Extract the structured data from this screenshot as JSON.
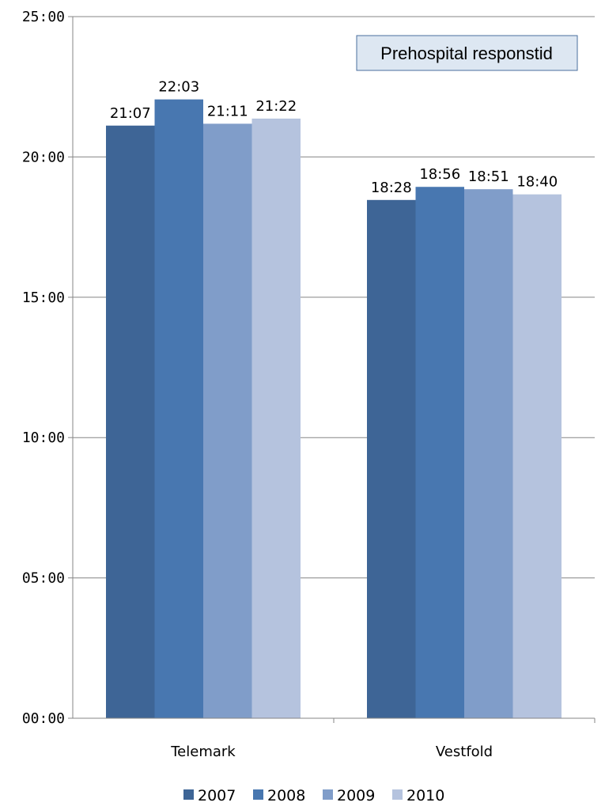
{
  "chart_data": {
    "type": "bar",
    "title": "Prehospital responstid",
    "categories": [
      "Telemark",
      "Vestfold"
    ],
    "y_ticks": [
      "00:00",
      "05:00",
      "10:00",
      "15:00",
      "20:00",
      "25:00"
    ],
    "y_unit": "minutes (mm:ss)",
    "ylim": [
      0,
      25
    ],
    "grid": true,
    "legend_position": "bottom",
    "series": [
      {
        "name": "2007",
        "color": "#3e6596",
        "values": [
          21.1167,
          18.4667
        ],
        "labels": [
          "21:07",
          "18:28"
        ]
      },
      {
        "name": "2008",
        "color": "#4877b0",
        "values": [
          22.05,
          18.9333
        ],
        "labels": [
          "22:03",
          "18:56"
        ]
      },
      {
        "name": "2009",
        "color": "#809dc9",
        "values": [
          21.1833,
          18.85
        ],
        "labels": [
          "21:11",
          "18:51"
        ]
      },
      {
        "name": "2010",
        "color": "#b5c3de",
        "values": [
          21.3667,
          18.6667
        ],
        "labels": [
          "21:22",
          "18:40"
        ]
      }
    ]
  }
}
